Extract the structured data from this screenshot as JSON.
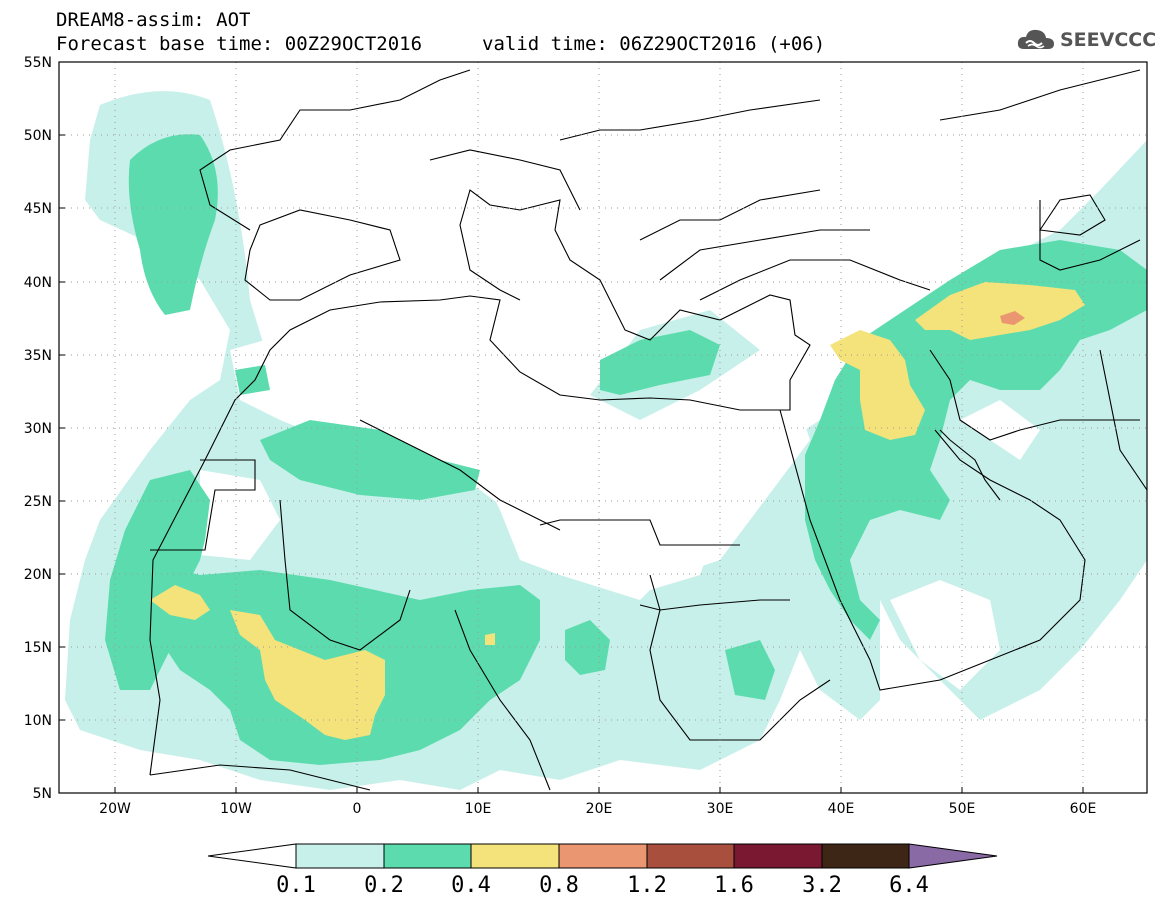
{
  "title": {
    "line1": "DREAM8-assim: AOT",
    "line2_left": "Forecast base time: 00Z29OCT2016",
    "line2_right": "valid time: 06Z29OCT2016 (+06)"
  },
  "logo": {
    "text": "SEEVCCC",
    "icon": "cloud-icon"
  },
  "map": {
    "lon_range": [
      -25,
      65
    ],
    "lat_range": [
      5,
      55
    ],
    "lon_ticks": [
      {
        "value": -20,
        "label": "20W"
      },
      {
        "value": -10,
        "label": "10W"
      },
      {
        "value": 0,
        "label": "0"
      },
      {
        "value": 10,
        "label": "10E"
      },
      {
        "value": 20,
        "label": "20E"
      },
      {
        "value": 30,
        "label": "30E"
      },
      {
        "value": 40,
        "label": "40E"
      },
      {
        "value": 50,
        "label": "50E"
      },
      {
        "value": 60,
        "label": "60E"
      }
    ],
    "lat_ticks": [
      {
        "value": 55,
        "label": "55N"
      },
      {
        "value": 50,
        "label": "50N"
      },
      {
        "value": 45,
        "label": "45N"
      },
      {
        "value": 40,
        "label": "40N"
      },
      {
        "value": 35,
        "label": "35N"
      },
      {
        "value": 30,
        "label": "30N"
      },
      {
        "value": 25,
        "label": "25N"
      },
      {
        "value": 20,
        "label": "20N"
      },
      {
        "value": 15,
        "label": "15N"
      },
      {
        "value": 10,
        "label": "10N"
      },
      {
        "value": 5,
        "label": "5N"
      }
    ],
    "grid": "dotted"
  },
  "colorbar": {
    "labels": [
      "0.1",
      "0.2",
      "0.4",
      "0.8",
      "1.2",
      "1.6",
      "3.2",
      "6.4"
    ],
    "colors": [
      "#ffffff",
      "#c8f0ea",
      "#5cdcae",
      "#f4e27a",
      "#ea9670",
      "#a94f3e",
      "#7a1832",
      "#3e2617",
      "#8a6aa4"
    ]
  }
}
